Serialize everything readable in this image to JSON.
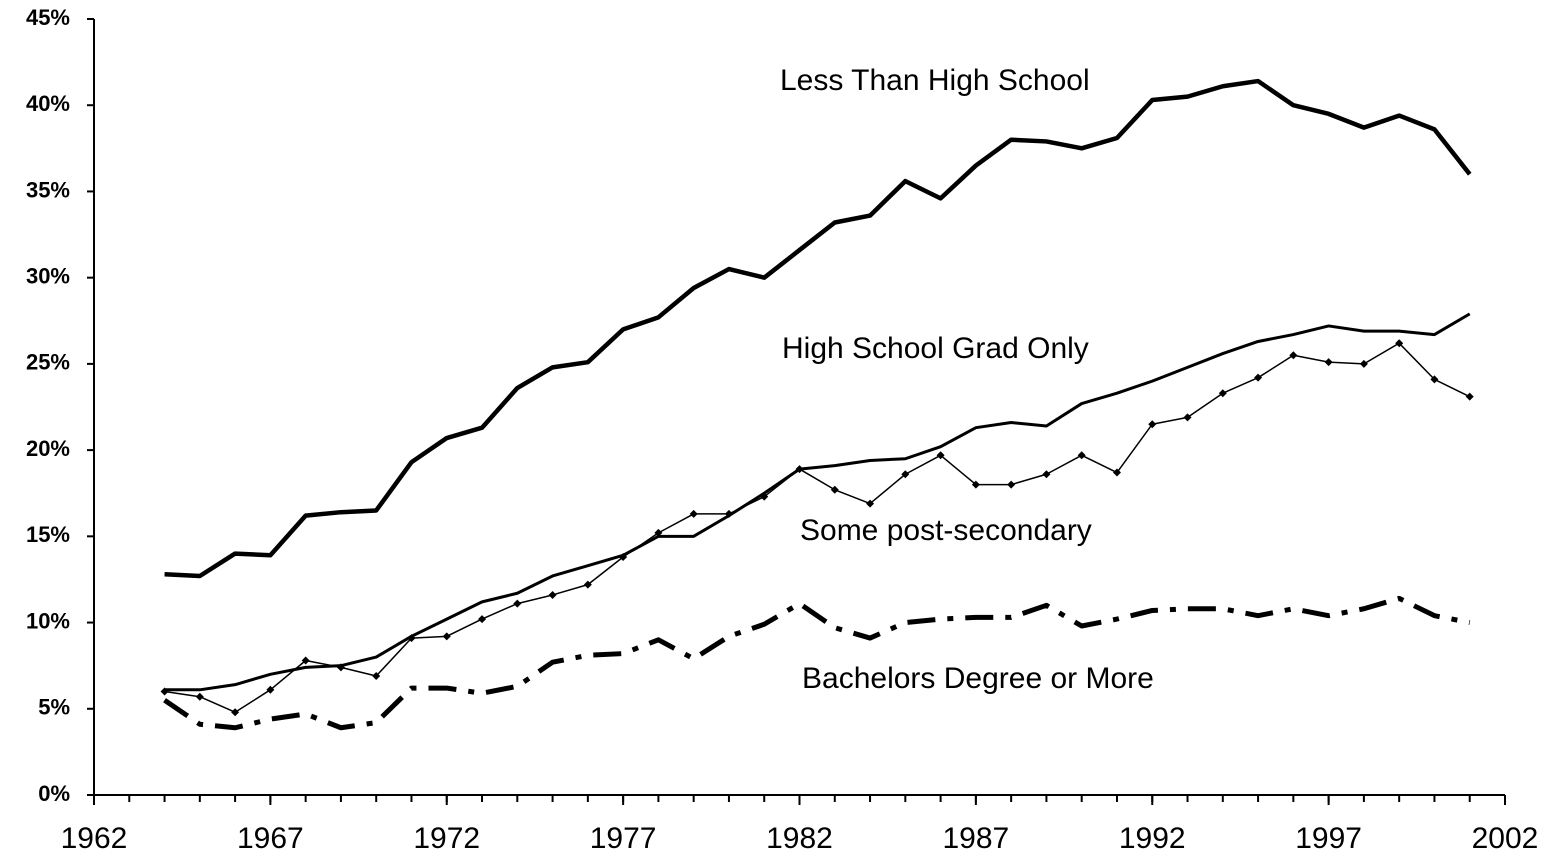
{
  "chart_data": {
    "type": "line",
    "x": [
      1964,
      1965,
      1966,
      1967,
      1968,
      1969,
      1970,
      1971,
      1972,
      1973,
      1974,
      1975,
      1976,
      1977,
      1978,
      1979,
      1980,
      1981,
      1982,
      1983,
      1984,
      1985,
      1986,
      1987,
      1988,
      1989,
      1990,
      1991,
      1992,
      1993,
      1994,
      1995,
      1996,
      1997,
      1998,
      1999,
      2000,
      2001
    ],
    "series": [
      {
        "name": "Less Than High School",
        "color": "#000000",
        "line_width": 4.5,
        "values": [
          12.8,
          12.7,
          14.0,
          13.9,
          16.2,
          16.4,
          16.5,
          19.3,
          20.7,
          21.3,
          23.6,
          24.8,
          25.1,
          27.0,
          27.7,
          29.4,
          30.5,
          30.0,
          31.6,
          33.2,
          33.6,
          35.6,
          34.6,
          36.5,
          38.0,
          37.9,
          37.5,
          38.1,
          40.3,
          40.5,
          41.1,
          41.4,
          40.0,
          39.5,
          38.7,
          39.4,
          38.6,
          36.0
        ]
      },
      {
        "name": "High School Grad Only",
        "color": "#000000",
        "line_width": 3,
        "values": [
          6.1,
          6.1,
          6.4,
          7.0,
          7.4,
          7.5,
          8.0,
          9.2,
          10.2,
          11.2,
          11.7,
          12.7,
          13.3,
          13.9,
          15.0,
          15.0,
          16.2,
          17.5,
          18.9,
          19.1,
          19.4,
          19.5,
          20.2,
          21.3,
          21.6,
          21.4,
          22.7,
          23.3,
          24.0,
          24.8,
          25.6,
          26.3,
          26.7,
          27.2,
          26.9,
          26.9,
          26.7,
          27.9
        ]
      },
      {
        "name": "Some post-secondary",
        "color": "#000000",
        "line_width": 1.5,
        "marker": "diamond",
        "values": [
          6.0,
          5.7,
          4.8,
          6.1,
          7.8,
          7.4,
          6.9,
          9.1,
          9.2,
          10.2,
          11.1,
          11.6,
          12.2,
          13.8,
          15.2,
          16.3,
          16.3,
          17.3,
          18.9,
          17.7,
          16.9,
          18.6,
          19.7,
          18.0,
          18.0,
          18.6,
          19.7,
          18.7,
          21.5,
          21.9,
          23.3,
          24.2,
          25.5,
          25.1,
          25.0,
          26.2,
          24.1,
          23.1
        ]
      },
      {
        "name": "Bachelors Degree or More",
        "color": "#000000",
        "line_width": 5,
        "line_style": "dashdot",
        "values": [
          5.5,
          4.1,
          3.9,
          4.4,
          4.7,
          3.9,
          4.2,
          6.2,
          6.2,
          5.9,
          6.3,
          7.7,
          8.1,
          8.2,
          9.0,
          7.9,
          9.2,
          9.9,
          11.1,
          9.7,
          9.1,
          10.0,
          10.2,
          10.3,
          10.3,
          11.0,
          9.8,
          10.2,
          10.7,
          10.8,
          10.8,
          10.4,
          10.8,
          10.4,
          10.8,
          11.4,
          10.4,
          10.0
        ]
      }
    ],
    "xlim": [
      1962,
      2002
    ],
    "xticks": [
      1962,
      1967,
      1972,
      1977,
      1982,
      1987,
      1992,
      1997,
      2002
    ],
    "ylim": [
      0,
      45
    ],
    "yticks": [
      {
        "value": 0,
        "label": "0%"
      },
      {
        "value": 5,
        "label": "5%"
      },
      {
        "value": 10,
        "label": "10%"
      },
      {
        "value": 15,
        "label": "15%"
      },
      {
        "value": 20,
        "label": "20%"
      },
      {
        "value": 25,
        "label": "25%"
      },
      {
        "value": 30,
        "label": "30%"
      },
      {
        "value": 35,
        "label": "35%"
      },
      {
        "value": 40,
        "label": "40%"
      },
      {
        "value": 45,
        "label": "45%"
      }
    ],
    "grid": false
  }
}
